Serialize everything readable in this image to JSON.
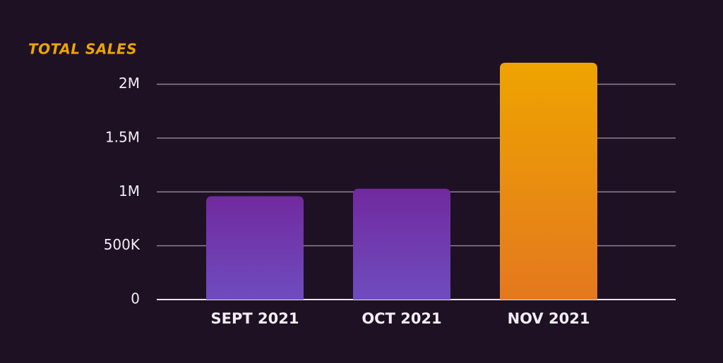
{
  "chart_data": {
    "type": "bar",
    "title": "TOTAL SALES",
    "categories": [
      "SEPT 2021",
      "OCT 2021",
      "NOV 2021"
    ],
    "values": [
      960000,
      1030000,
      2200000
    ],
    "colors": [
      "#702a9e",
      "#702a9e",
      "#eea400"
    ],
    "gradient_colors": [
      "#6f4cbf",
      "#6f4cbf",
      "#e4781f"
    ],
    "ylim": [
      0,
      2200000
    ],
    "yticks": [
      0,
      {
        "value": 500000,
        "label": "500K"
      },
      {
        "value": 1000000,
        "label": "1M"
      },
      {
        "value": 1500000,
        "label": "1.5M"
      },
      {
        "value": 2000000,
        "label": "2M"
      }
    ],
    "grid": true
  }
}
